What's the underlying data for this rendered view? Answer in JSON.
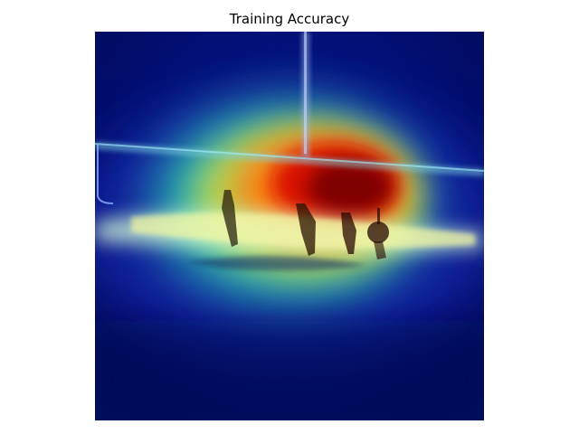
{
  "figure": {
    "title": "Training Accuracy"
  },
  "image": {
    "description": "Grad-CAM style heatmap overlay on a dark blue photo of a horizontal rail with hanging objects",
    "colormap": "jet",
    "colors": {
      "background_dark": "#000b5c",
      "hot": "#8a0000",
      "warm": "#ff4a00",
      "mid": "#f2e24a",
      "cool": "#3fd8c8",
      "cold": "#0a1a9a"
    }
  }
}
